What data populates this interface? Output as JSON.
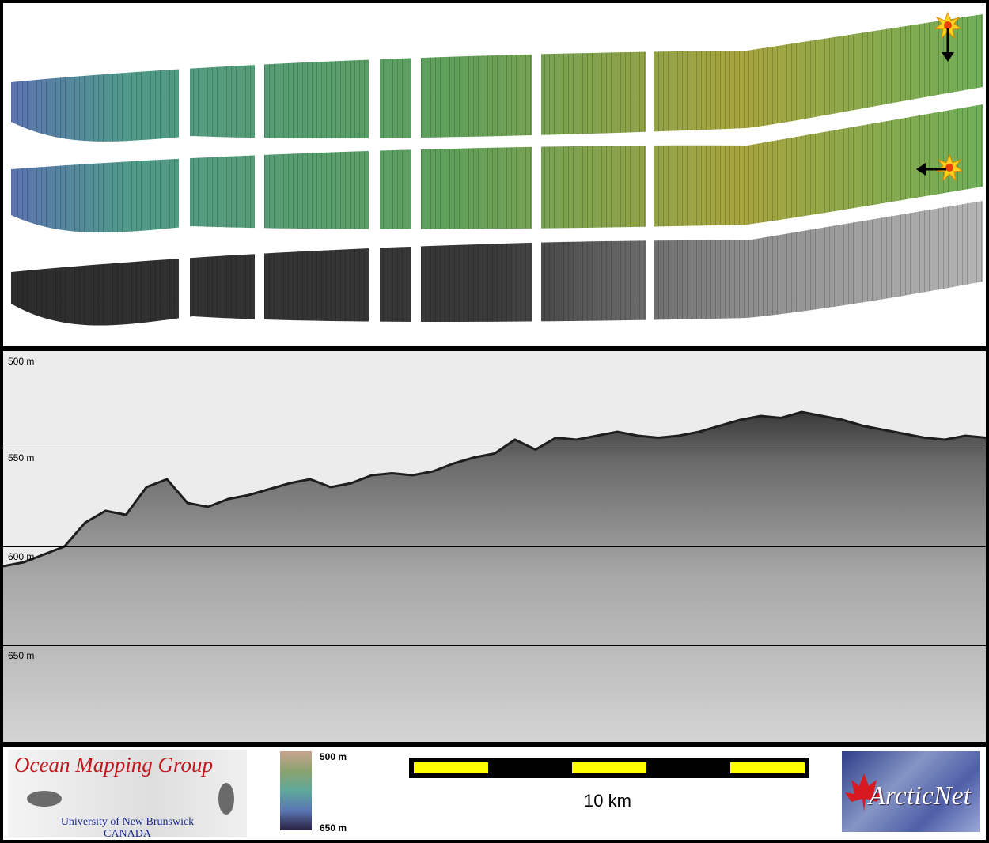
{
  "colors": {
    "frame": "#000000",
    "swath_green": "#5e9a5a",
    "swath_olive": "#9a9a3c",
    "backscatter_gray": "#555555",
    "omg_red": "#c0171d",
    "omg_blue": "#1b2a8c",
    "scale_yellow": "#ffff00",
    "arcticnet_blue": "#3a4a98"
  },
  "map_panel": {
    "icons": [
      "sun-illumination-icon",
      "arrow-down-icon",
      "arrow-left-icon"
    ]
  },
  "profile": {
    "depth_labels": [
      "500 m",
      "550 m",
      "600 m",
      "650 m"
    ],
    "depth_values": [
      500,
      550,
      600,
      650
    ],
    "depth_range": [
      500,
      650
    ],
    "seafloor_depth_profile": [
      610,
      608,
      604,
      600,
      588,
      582,
      584,
      570,
      566,
      578,
      580,
      576,
      574,
      571,
      568,
      566,
      570,
      568,
      564,
      563,
      564,
      562,
      558,
      555,
      553,
      546,
      551,
      545,
      546,
      544,
      542,
      544,
      545,
      544,
      542,
      539,
      536,
      534,
      535,
      532,
      534,
      536,
      539,
      541,
      543,
      545,
      546,
      544,
      545
    ]
  },
  "legend": {
    "organization": "Ocean Mapping Group",
    "university": "University of New Brunswick",
    "country": "CANADA",
    "colorbar_top": "500 m",
    "colorbar_bottom": "650 m",
    "scale_label": "10 km",
    "partner_logo": "ArcticNet"
  }
}
